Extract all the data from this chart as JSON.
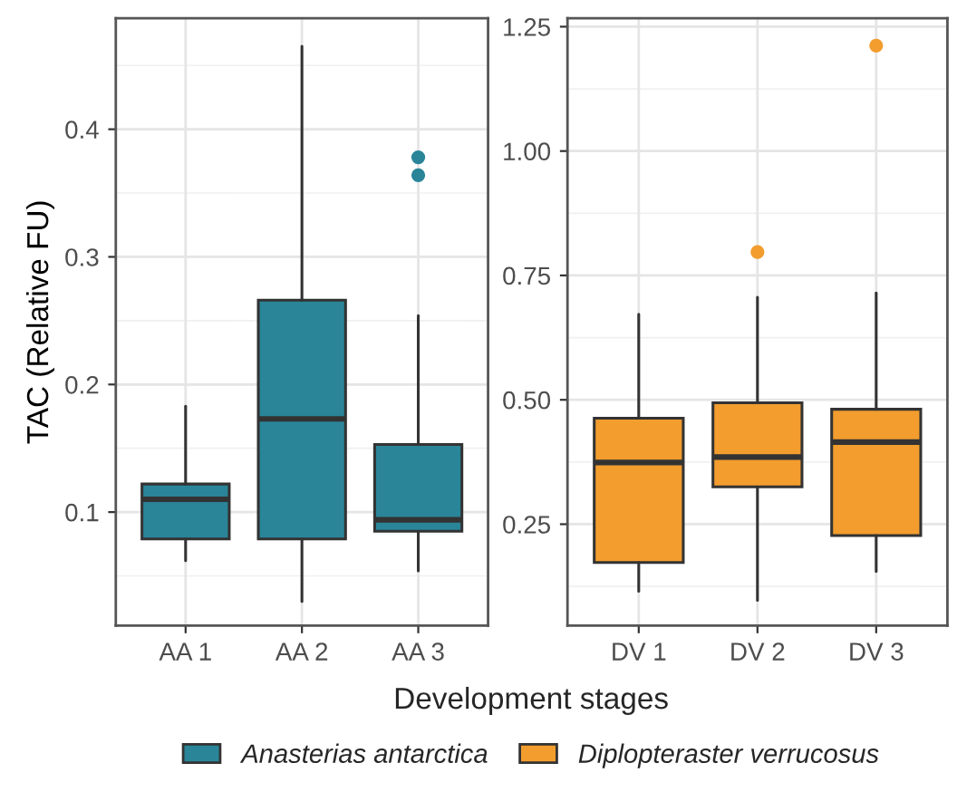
{
  "chart_data": [
    {
      "type": "box",
      "ylabel": "TAC (Relative FU)",
      "xlabel": "Development stages",
      "categories": [
        "AA 1",
        "AA 2",
        "AA 3"
      ],
      "ylim": [
        0.011,
        0.487
      ],
      "yticks": [
        {
          "value": 0.1,
          "label": "0.1"
        },
        {
          "value": 0.2,
          "label": "0.2"
        },
        {
          "value": 0.3,
          "label": "0.3"
        },
        {
          "value": 0.4,
          "label": "0.4"
        }
      ],
      "grid": true,
      "legend": "bottom",
      "series": [
        {
          "name": "Anasterias antarctica",
          "color": "#2a8599",
          "boxes": [
            {
              "low": 0.062,
              "q1": 0.079,
              "median": 0.11,
              "q3": 0.122,
              "high": 0.183
            },
            {
              "low": 0.03,
              "q1": 0.079,
              "median": 0.173,
              "q3": 0.266,
              "high": 0.465
            },
            {
              "low": 0.054,
              "q1": 0.085,
              "median": 0.094,
              "q3": 0.153,
              "high": 0.254,
              "outliers": [
                0.378,
                0.364
              ]
            }
          ]
        }
      ]
    },
    {
      "type": "box",
      "categories": [
        "DV 1",
        "DV 2",
        "DV 3"
      ],
      "ylim": [
        0.046,
        1.267
      ],
      "yticks": [
        {
          "value": 0.25,
          "label": "0.25"
        },
        {
          "value": 0.5,
          "label": "0.50"
        },
        {
          "value": 0.75,
          "label": "0.75"
        },
        {
          "value": 1.0,
          "label": "1.00"
        },
        {
          "value": 1.25,
          "label": "1.25"
        }
      ],
      "grid": true,
      "legend": "bottom",
      "series": [
        {
          "name": "Diplopteraster verrucosus",
          "color": "#f29d2e",
          "boxes": [
            {
              "low": 0.115,
              "q1": 0.173,
              "median": 0.374,
              "q3": 0.463,
              "high": 0.672
            },
            {
              "low": 0.097,
              "q1": 0.325,
              "median": 0.385,
              "q3": 0.494,
              "high": 0.706,
              "outliers": [
                0.797
              ]
            },
            {
              "low": 0.155,
              "q1": 0.227,
              "median": 0.415,
              "q3": 0.481,
              "high": 0.715,
              "outliers": [
                1.212
              ]
            }
          ]
        }
      ]
    }
  ]
}
